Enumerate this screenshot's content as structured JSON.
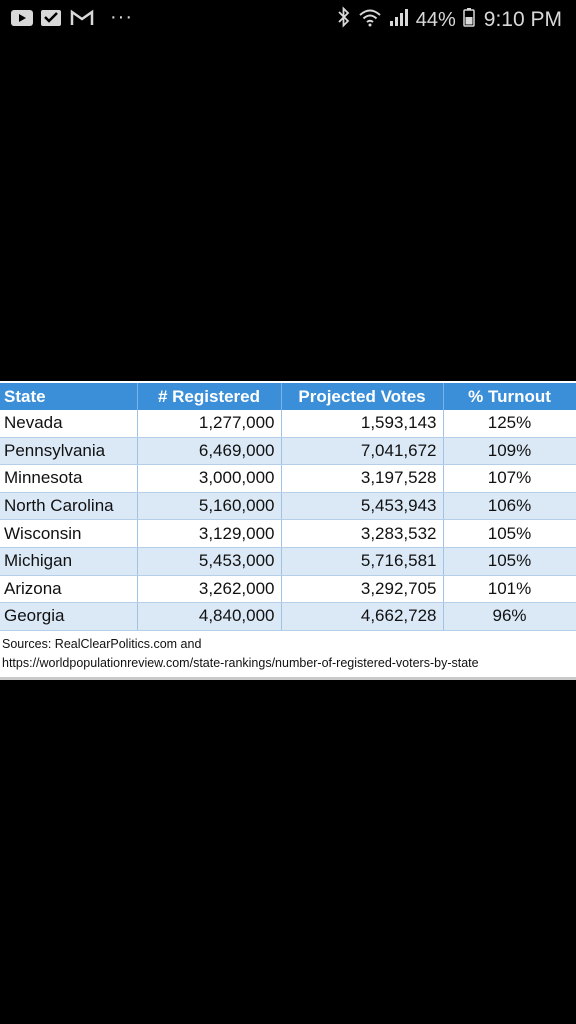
{
  "status_bar": {
    "left_icons": [
      "youtube-icon",
      "mail-check-icon",
      "gmail-icon"
    ],
    "overflow": "···",
    "right_icons": [
      "bluetooth-icon",
      "wifi-icon",
      "signal-icon"
    ],
    "battery_percent": "44%",
    "time": "9:10 PM"
  },
  "table": {
    "headers": [
      "State",
      "# Registered",
      "Projected Votes",
      "% Turnout"
    ],
    "rows": [
      {
        "state": "Nevada",
        "registered": "1,277,000",
        "projected": "1,593,143",
        "turnout": "125%"
      },
      {
        "state": "Pennsylvania",
        "registered": "6,469,000",
        "projected": "7,041,672",
        "turnout": "109%"
      },
      {
        "state": "Minnesota",
        "registered": "3,000,000",
        "projected": "3,197,528",
        "turnout": "107%"
      },
      {
        "state": "North Carolina",
        "registered": "5,160,000",
        "projected": "5,453,943",
        "turnout": "106%"
      },
      {
        "state": "Wisconsin",
        "registered": "3,129,000",
        "projected": "3,283,532",
        "turnout": "105%"
      },
      {
        "state": "Michigan",
        "registered": "5,453,000",
        "projected": "5,716,581",
        "turnout": "105%"
      },
      {
        "state": "Arizona",
        "registered": "3,262,000",
        "projected": "3,292,705",
        "turnout": "101%"
      },
      {
        "state": "Georgia",
        "registered": "4,840,000",
        "projected": "4,662,728",
        "turnout": "96%"
      }
    ],
    "header_color": "#3b8fd8",
    "stripe_color": "#dbe9f7"
  },
  "sources": {
    "line1": "Sources: RealClearPolitics.com and",
    "line2": "https://worldpopulationreview.com/state-rankings/number-of-registered-voters-by-state"
  }
}
